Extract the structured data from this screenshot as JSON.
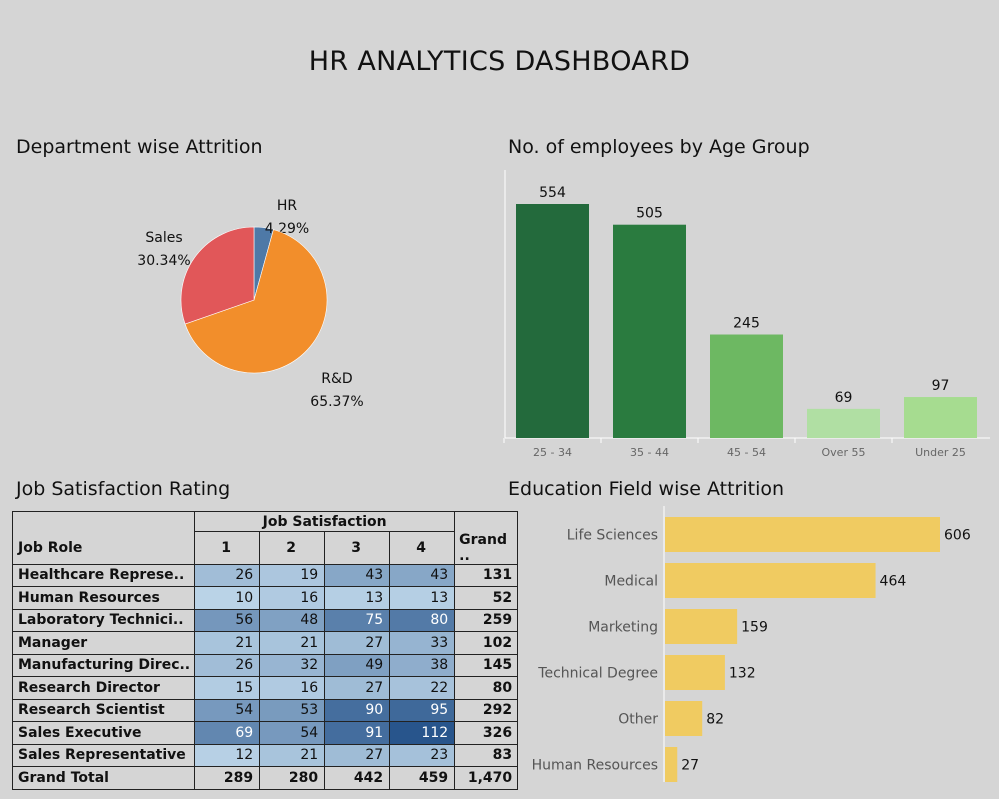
{
  "dashboard": {
    "title": "HR ANALYTICS DASHBOARD"
  },
  "panels": {
    "dept": {
      "title": "Department wise Attrition"
    },
    "age": {
      "title": "No. of employees by Age Group"
    },
    "jobsat": {
      "title": "Job Satisfaction Rating"
    },
    "edu": {
      "title": "Education Field wise Attrition"
    }
  },
  "table": {
    "group_header": "Job Satisfaction",
    "row_header": "Job Role",
    "columns": [
      "1",
      "2",
      "3",
      "4",
      "Grand .."
    ],
    "rows": [
      {
        "role": "Healthcare Represe..",
        "values": [
          26,
          19,
          43,
          43
        ],
        "total": "131"
      },
      {
        "role": "Human Resources",
        "values": [
          10,
          16,
          13,
          13
        ],
        "total": "52"
      },
      {
        "role": "Laboratory Technici..",
        "values": [
          56,
          48,
          75,
          80
        ],
        "total": "259"
      },
      {
        "role": "Manager",
        "values": [
          21,
          21,
          27,
          33
        ],
        "total": "102"
      },
      {
        "role": "Manufacturing Direc..",
        "values": [
          26,
          32,
          49,
          38
        ],
        "total": "145"
      },
      {
        "role": "Research Director",
        "values": [
          15,
          16,
          27,
          22
        ],
        "total": "80"
      },
      {
        "role": "Research Scientist",
        "values": [
          54,
          53,
          90,
          95
        ],
        "total": "292"
      },
      {
        "role": "Sales Executive",
        "values": [
          69,
          54,
          91,
          112
        ],
        "total": "326"
      },
      {
        "role": "Sales Representative",
        "values": [
          12,
          21,
          27,
          23
        ],
        "total": "83"
      }
    ],
    "total_row": {
      "role": "Grand Total",
      "values": [
        "289",
        "280",
        "442",
        "459"
      ],
      "total": "1,470"
    }
  },
  "chart_data": [
    {
      "type": "pie",
      "title": "Department wise Attrition",
      "slices": [
        {
          "name": "R&D",
          "value": 65.37,
          "label": "65.37%",
          "color": "#f28e2b"
        },
        {
          "name": "Sales",
          "value": 30.34,
          "label": "30.34%",
          "color": "#e15759"
        },
        {
          "name": "HR",
          "value": 4.29,
          "label": "4.29%",
          "color": "#4e79a7"
        }
      ]
    },
    {
      "type": "bar",
      "title": "No. of employees by Age Group",
      "categories": [
        "25 - 34",
        "35 - 44",
        "45 - 54",
        "Over 55",
        "Under 25"
      ],
      "values": [
        554,
        505,
        245,
        69,
        97
      ],
      "colors": [
        "#236a3c",
        "#2a7b3f",
        "#6db862",
        "#b0dfa3",
        "#a6dc90"
      ],
      "ylim": [
        0,
        554
      ]
    },
    {
      "type": "bar",
      "orientation": "horizontal",
      "title": "Education Field wise Attrition",
      "categories": [
        "Life Sciences",
        "Medical",
        "Marketing",
        "Technical Degree",
        "Other",
        "Human Resources"
      ],
      "values": [
        606,
        464,
        159,
        132,
        82,
        27
      ],
      "color": "#f0cb61",
      "xlim": [
        0,
        606
      ]
    }
  ]
}
